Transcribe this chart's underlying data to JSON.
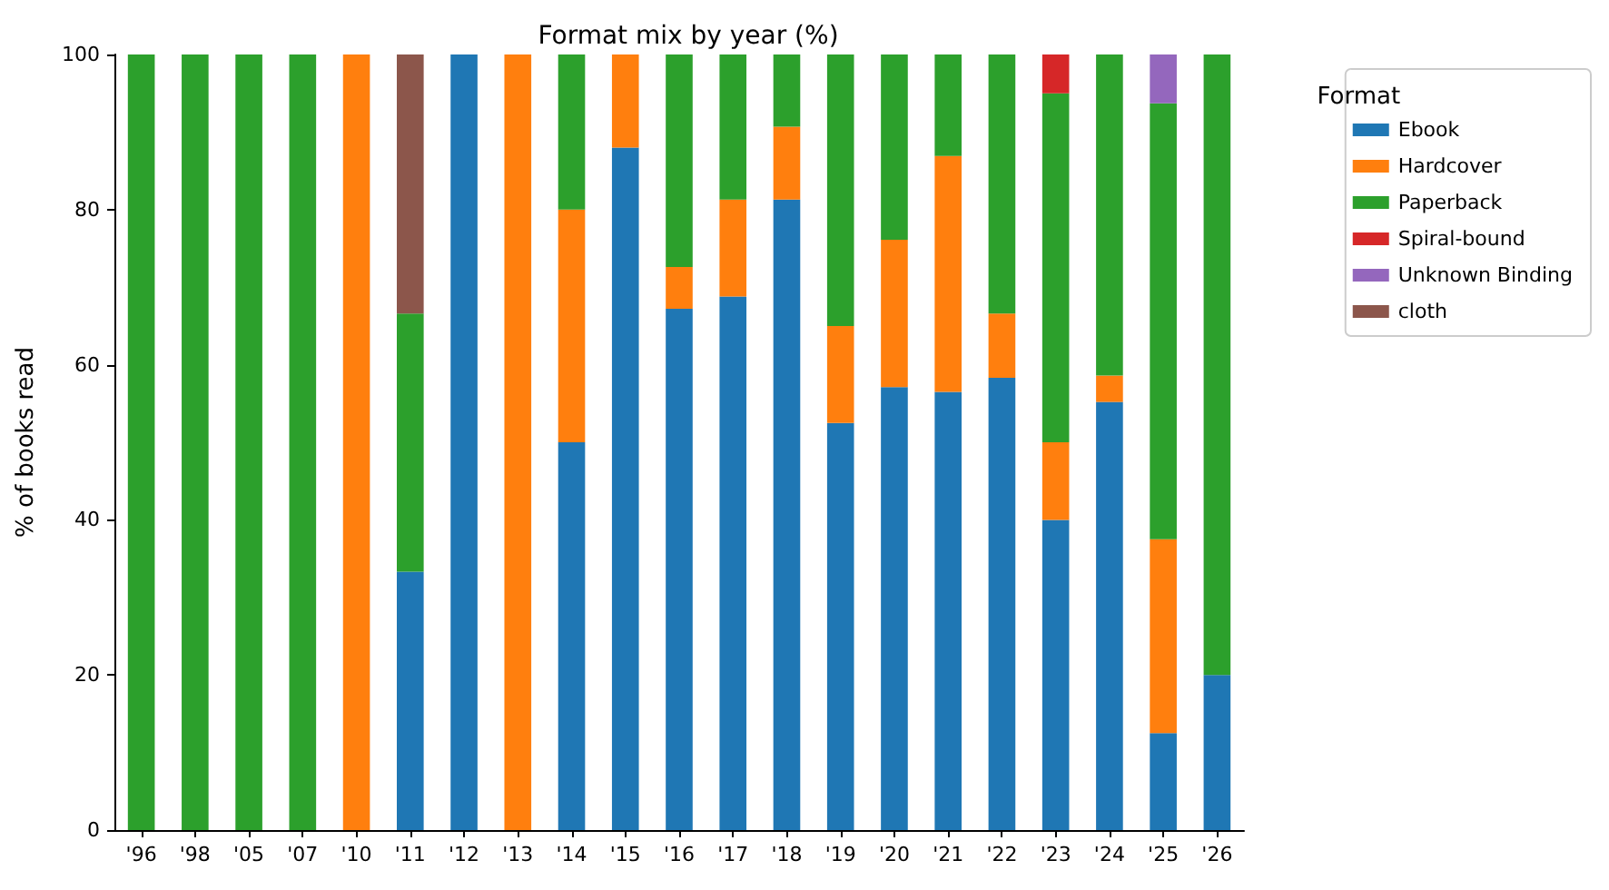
{
  "chart_data": {
    "type": "bar",
    "title": "Format mix by year (%)",
    "ylabel": "% of books read",
    "legend_title": "Format",
    "stacked": true,
    "legend": "top right",
    "grid": false,
    "categories": [
      "'96",
      "'98",
      "'05",
      "'07",
      "'10",
      "'11",
      "'12",
      "'13",
      "'14",
      "'15",
      "'16",
      "'17",
      "'18",
      "'19",
      "'20",
      "'21",
      "'22",
      "'23",
      "'24",
      "'25",
      "'26"
    ],
    "ylim": [
      0,
      100
    ],
    "yticks": [
      0,
      20,
      40,
      60,
      80,
      100
    ],
    "series": [
      {
        "name": "Ebook",
        "color": "#1f77b4",
        "values": [
          null,
          null,
          null,
          null,
          null,
          33.3,
          100,
          null,
          50,
          88,
          67.2,
          68.8,
          81.3,
          52.5,
          57.1,
          56.5,
          58.3,
          40,
          55.2,
          12.5,
          20
        ]
      },
      {
        "name": "Hardcover",
        "color": "#ff7f0e",
        "values": [
          null,
          null,
          null,
          null,
          100,
          null,
          null,
          100,
          30,
          12,
          5.4,
          12.5,
          9.4,
          12.5,
          19.0,
          30.4,
          8.3,
          10,
          3.4,
          25,
          null
        ]
      },
      {
        "name": "Paperback",
        "color": "#2ca02c",
        "values": [
          100,
          100,
          100,
          100,
          null,
          33.3,
          null,
          null,
          20,
          null,
          27.4,
          18.7,
          9.3,
          35,
          23.9,
          13.1,
          33.4,
          45,
          41.4,
          56.2,
          80
        ]
      },
      {
        "name": "Spiral-bound",
        "color": "#d62728",
        "values": [
          null,
          null,
          null,
          null,
          null,
          null,
          null,
          null,
          null,
          null,
          null,
          null,
          null,
          null,
          null,
          null,
          null,
          5,
          null,
          null,
          null
        ]
      },
      {
        "name": "Unknown Binding",
        "color": "#9467bd",
        "values": [
          null,
          null,
          null,
          null,
          null,
          null,
          null,
          null,
          null,
          null,
          null,
          null,
          null,
          null,
          null,
          null,
          null,
          null,
          null,
          6.3,
          null
        ]
      },
      {
        "name": "cloth",
        "color": "#8c564b",
        "values": [
          null,
          null,
          null,
          null,
          null,
          33.4,
          null,
          null,
          null,
          null,
          null,
          null,
          null,
          null,
          null,
          null,
          null,
          null,
          null,
          null,
          null
        ]
      }
    ]
  }
}
